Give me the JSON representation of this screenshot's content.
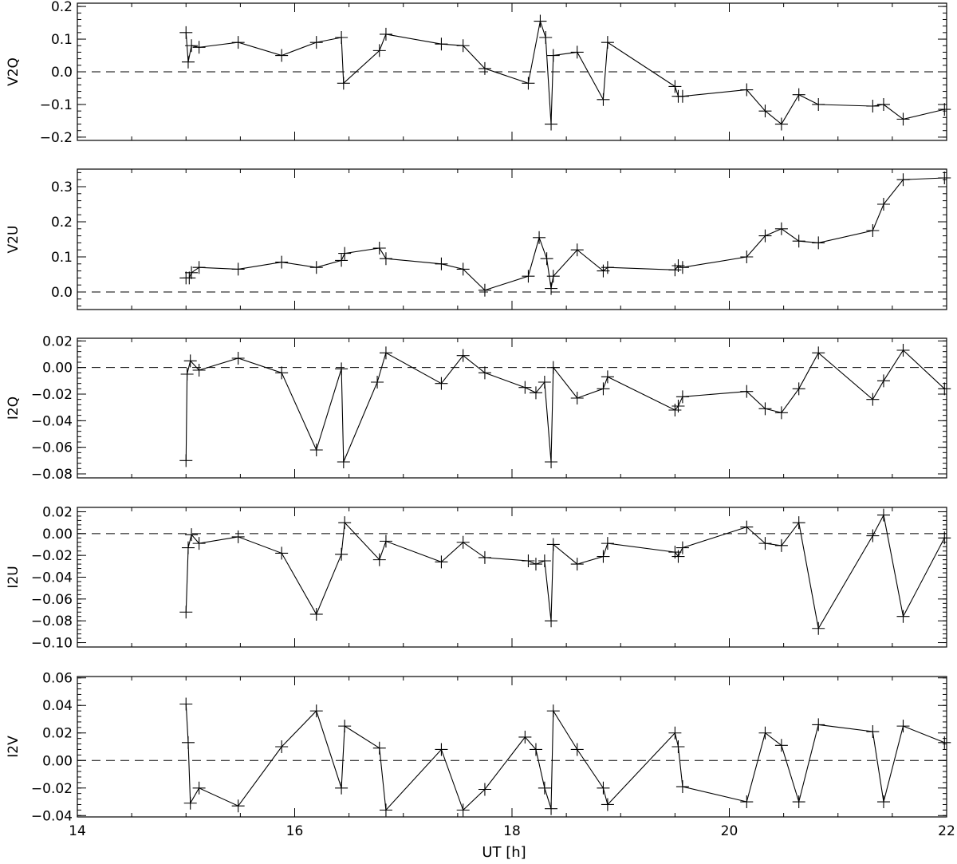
{
  "figure": {
    "xlabel": "UT [h]"
  },
  "chart_data": [
    {
      "type": "line",
      "ylabel": "V2Q",
      "xlim": [
        14,
        22
      ],
      "ylim": [
        -0.21,
        0.21
      ],
      "yticks": [
        -0.2,
        -0.1,
        0.0,
        0.1,
        0.2
      ],
      "ytick_labels": [
        "−0.2",
        "−0.1",
        "0.0",
        "0.1",
        "0.2"
      ],
      "xticks": [
        14,
        16,
        18,
        20,
        22
      ],
      "xtick_labels": [],
      "reference_line_y": 0,
      "marker": "plus",
      "x": [
        15.0,
        15.02,
        15.05,
        15.12,
        15.48,
        15.88,
        16.2,
        16.43,
        16.45,
        16.78,
        16.84,
        17.35,
        17.55,
        17.75,
        18.15,
        18.26,
        18.31,
        18.36,
        18.38,
        18.6,
        18.84,
        18.88,
        19.5,
        19.53,
        19.57,
        20.16,
        20.33,
        20.48,
        20.64,
        20.82,
        21.32,
        21.42,
        21.6,
        21.98
      ],
      "y": [
        0.12,
        0.03,
        0.08,
        0.075,
        0.09,
        0.05,
        0.09,
        0.105,
        -0.035,
        0.065,
        0.115,
        0.085,
        0.08,
        0.01,
        -0.035,
        0.155,
        0.105,
        -0.16,
        0.05,
        0.06,
        -0.085,
        0.09,
        -0.045,
        -0.075,
        -0.075,
        -0.055,
        -0.12,
        -0.16,
        -0.07,
        -0.1,
        -0.105,
        -0.1,
        -0.145,
        -0.115
      ]
    },
    {
      "type": "line",
      "ylabel": "V2U",
      "xlim": [
        14,
        22
      ],
      "ylim": [
        -0.05,
        0.35
      ],
      "yticks": [
        0.0,
        0.1,
        0.2,
        0.3
      ],
      "ytick_labels": [
        "0.0",
        "0.1",
        "0.2",
        "0.3"
      ],
      "xticks": [
        14,
        16,
        18,
        20,
        22
      ],
      "xtick_labels": [],
      "reference_line_y": 0,
      "marker": "plus",
      "x": [
        15.0,
        15.03,
        15.05,
        15.12,
        15.48,
        15.88,
        16.2,
        16.43,
        16.46,
        16.78,
        16.84,
        17.35,
        17.55,
        17.75,
        18.15,
        18.25,
        18.32,
        18.36,
        18.38,
        18.6,
        18.84,
        18.88,
        19.5,
        19.53,
        19.57,
        20.16,
        20.33,
        20.48,
        20.64,
        20.82,
        21.32,
        21.42,
        21.6,
        21.98
      ],
      "y": [
        0.04,
        0.04,
        0.055,
        0.07,
        0.065,
        0.085,
        0.07,
        0.09,
        0.11,
        0.125,
        0.095,
        0.08,
        0.065,
        0.005,
        0.045,
        0.155,
        0.095,
        0.01,
        0.045,
        0.12,
        0.06,
        0.07,
        0.063,
        0.075,
        0.07,
        0.1,
        0.16,
        0.18,
        0.145,
        0.14,
        0.175,
        0.25,
        0.32,
        0.325
      ]
    },
    {
      "type": "line",
      "ylabel": "I2Q",
      "xlim": [
        14,
        22
      ],
      "ylim": [
        -0.083,
        0.022
      ],
      "yticks": [
        -0.08,
        -0.06,
        -0.04,
        -0.02,
        0.0,
        0.02
      ],
      "ytick_labels": [
        "−0.08",
        "−0.06",
        "−0.04",
        "−0.02",
        "0.00",
        "0.02"
      ],
      "xticks": [
        14,
        16,
        18,
        20,
        22
      ],
      "xtick_labels": [],
      "reference_line_y": 0,
      "marker": "plus",
      "x": [
        15.0,
        15.01,
        15.04,
        15.12,
        15.48,
        15.88,
        16.2,
        16.43,
        16.45,
        16.76,
        16.84,
        17.35,
        17.55,
        17.75,
        18.12,
        18.22,
        18.3,
        18.36,
        18.38,
        18.6,
        18.84,
        18.88,
        19.5,
        19.53,
        19.57,
        20.16,
        20.33,
        20.48,
        20.64,
        20.82,
        21.32,
        21.42,
        21.6,
        21.98
      ],
      "y": [
        -0.07,
        -0.005,
        0.005,
        -0.002,
        0.007,
        -0.004,
        -0.062,
        -0.001,
        -0.071,
        -0.011,
        0.011,
        -0.012,
        0.009,
        -0.004,
        -0.015,
        -0.019,
        -0.011,
        -0.071,
        0.0,
        -0.023,
        -0.016,
        -0.007,
        -0.032,
        -0.029,
        -0.022,
        -0.018,
        -0.031,
        -0.034,
        -0.016,
        0.011,
        -0.024,
        -0.01,
        0.013,
        -0.016
      ]
    },
    {
      "type": "line",
      "ylabel": "I2U",
      "xlim": [
        14,
        22
      ],
      "ylim": [
        -0.104,
        0.024
      ],
      "yticks": [
        -0.1,
        -0.08,
        -0.06,
        -0.04,
        -0.02,
        0.0,
        0.02
      ],
      "ytick_labels": [
        "−0.10",
        "−0.08",
        "−0.06",
        "−0.04",
        "−0.02",
        "0.00",
        "0.02"
      ],
      "xticks": [
        14,
        16,
        18,
        20,
        22
      ],
      "xtick_labels": [],
      "reference_line_y": 0,
      "marker": "plus",
      "x": [
        15.0,
        15.02,
        15.05,
        15.12,
        15.48,
        15.88,
        16.2,
        16.43,
        16.46,
        16.78,
        16.84,
        17.35,
        17.55,
        17.75,
        18.15,
        18.22,
        18.3,
        18.36,
        18.38,
        18.6,
        18.84,
        18.88,
        19.5,
        19.53,
        19.57,
        20.16,
        20.33,
        20.48,
        20.64,
        20.82,
        21.32,
        21.42,
        21.6,
        21.98
      ],
      "y": [
        -0.072,
        -0.013,
        -0.001,
        -0.009,
        -0.003,
        -0.018,
        -0.074,
        -0.019,
        0.01,
        -0.024,
        -0.007,
        -0.026,
        -0.008,
        -0.022,
        -0.025,
        -0.028,
        -0.025,
        -0.08,
        -0.01,
        -0.028,
        -0.021,
        -0.009,
        -0.017,
        -0.021,
        -0.013,
        0.006,
        -0.009,
        -0.011,
        0.01,
        -0.087,
        -0.002,
        0.017,
        -0.076,
        -0.004
      ]
    },
    {
      "type": "line",
      "ylabel": "I2V",
      "xlim": [
        14,
        22
      ],
      "ylim": [
        -0.041,
        0.061
      ],
      "yticks": [
        -0.04,
        -0.02,
        0.0,
        0.02,
        0.04,
        0.06
      ],
      "ytick_labels": [
        "−0.04",
        "−0.02",
        "0.00",
        "0.02",
        "0.04",
        "0.06"
      ],
      "xticks": [
        14,
        16,
        18,
        20,
        22
      ],
      "xtick_labels": [
        "14",
        "16",
        "18",
        "20",
        "22"
      ],
      "reference_line_y": 0,
      "marker": "plus",
      "x": [
        15.0,
        15.02,
        15.04,
        15.12,
        15.48,
        15.88,
        16.2,
        16.43,
        16.46,
        16.78,
        16.84,
        17.35,
        17.55,
        17.75,
        18.12,
        18.22,
        18.3,
        18.36,
        18.38,
        18.6,
        18.84,
        18.88,
        19.5,
        19.53,
        19.57,
        20.16,
        20.33,
        20.48,
        20.64,
        20.82,
        21.32,
        21.42,
        21.6,
        21.98
      ],
      "y": [
        0.041,
        0.013,
        -0.031,
        -0.02,
        -0.033,
        0.01,
        0.036,
        -0.02,
        0.025,
        0.009,
        -0.036,
        0.008,
        -0.036,
        -0.021,
        0.017,
        0.008,
        -0.02,
        -0.035,
        0.036,
        0.008,
        -0.02,
        -0.032,
        0.02,
        0.01,
        -0.019,
        -0.03,
        0.02,
        0.011,
        -0.03,
        0.026,
        0.021,
        -0.03,
        0.025,
        0.013
      ]
    }
  ]
}
